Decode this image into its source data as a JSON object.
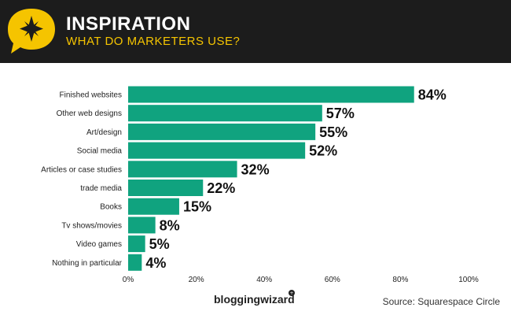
{
  "header": {
    "title": "INSPIRATION",
    "subtitle": "WHAT DO MARKETERS USE?",
    "icon": "star-speech-bubble-icon",
    "accent_color": "#f5c400",
    "background_color": "#1c1c1c"
  },
  "chart_data": {
    "type": "bar",
    "orientation": "horizontal",
    "categories": [
      "Finished websites",
      "Other web designs",
      "Art/design",
      "Social media",
      "Articles or case studies",
      "trade media",
      "Books",
      "Tv shows/movies",
      "Video games",
      "Nothing in particular"
    ],
    "values": [
      84,
      57,
      55,
      52,
      32,
      22,
      15,
      8,
      5,
      4
    ],
    "value_labels": [
      "84%",
      "57%",
      "55%",
      "52%",
      "32%",
      "22%",
      "15%",
      "8%",
      "5%",
      "4%"
    ],
    "xlim": [
      0,
      100
    ],
    "x_ticks": [
      "0%",
      "20%",
      "40%",
      "60%",
      "80%",
      "100%"
    ],
    "bar_color": "#10a37f",
    "grid": false
  },
  "footer": {
    "brand": "bloggingwizard",
    "source": "Source: Squarespace Circle"
  }
}
